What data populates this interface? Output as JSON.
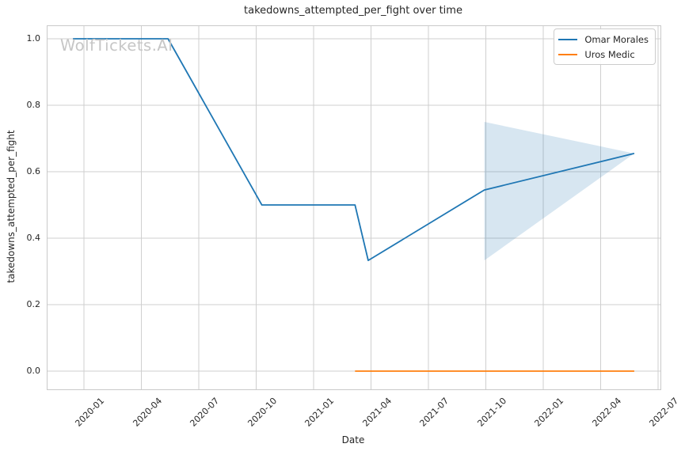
{
  "watermark": "WolfTickets.AI",
  "chart_data": {
    "type": "line",
    "title": "takedowns_attempted_per_fight over time",
    "xlabel": "Date",
    "ylabel": "takedowns_attempted_per_fight",
    "x_tick_labels": [
      "2020-01",
      "2020-04",
      "2020-07",
      "2020-10",
      "2021-01",
      "2021-04",
      "2021-07",
      "2021-10",
      "2022-01",
      "2022-04",
      "2022-07"
    ],
    "y_tick_labels": [
      "0.0",
      "0.2",
      "0.4",
      "0.6",
      "0.8",
      "1.0"
    ],
    "ylim": [
      -0.05,
      1.05
    ],
    "grid": true,
    "grid_color": "#cfcfcf",
    "legend_position": "upper right",
    "series": [
      {
        "name": "Omar Morales",
        "color": "#1f77b4",
        "points": [
          {
            "date": "2019-12-14",
            "value": 1.0
          },
          {
            "date": "2020-05-13",
            "value": 1.0
          },
          {
            "date": "2020-10-10",
            "value": 0.5
          },
          {
            "date": "2021-03-06",
            "value": 0.5
          },
          {
            "date": "2021-03-27",
            "value": 0.333
          },
          {
            "date": "2021-09-29",
            "value": 0.545
          },
          {
            "date": "2022-05-24",
            "value": 0.655
          }
        ]
      },
      {
        "name": "Uros Medic",
        "color": "#ff7f0e",
        "points": [
          {
            "date": "2021-03-06",
            "value": 0.0
          },
          {
            "date": "2022-05-24",
            "value": 0.0
          }
        ]
      }
    ],
    "confidence_band": {
      "series": "Omar Morales",
      "color": "#1f77b4",
      "opacity": 0.18,
      "polygon": [
        {
          "date": "2021-09-29",
          "value": 0.75
        },
        {
          "date": "2022-05-24",
          "value": 0.655
        },
        {
          "date": "2021-09-29",
          "value": 0.333
        }
      ]
    }
  }
}
